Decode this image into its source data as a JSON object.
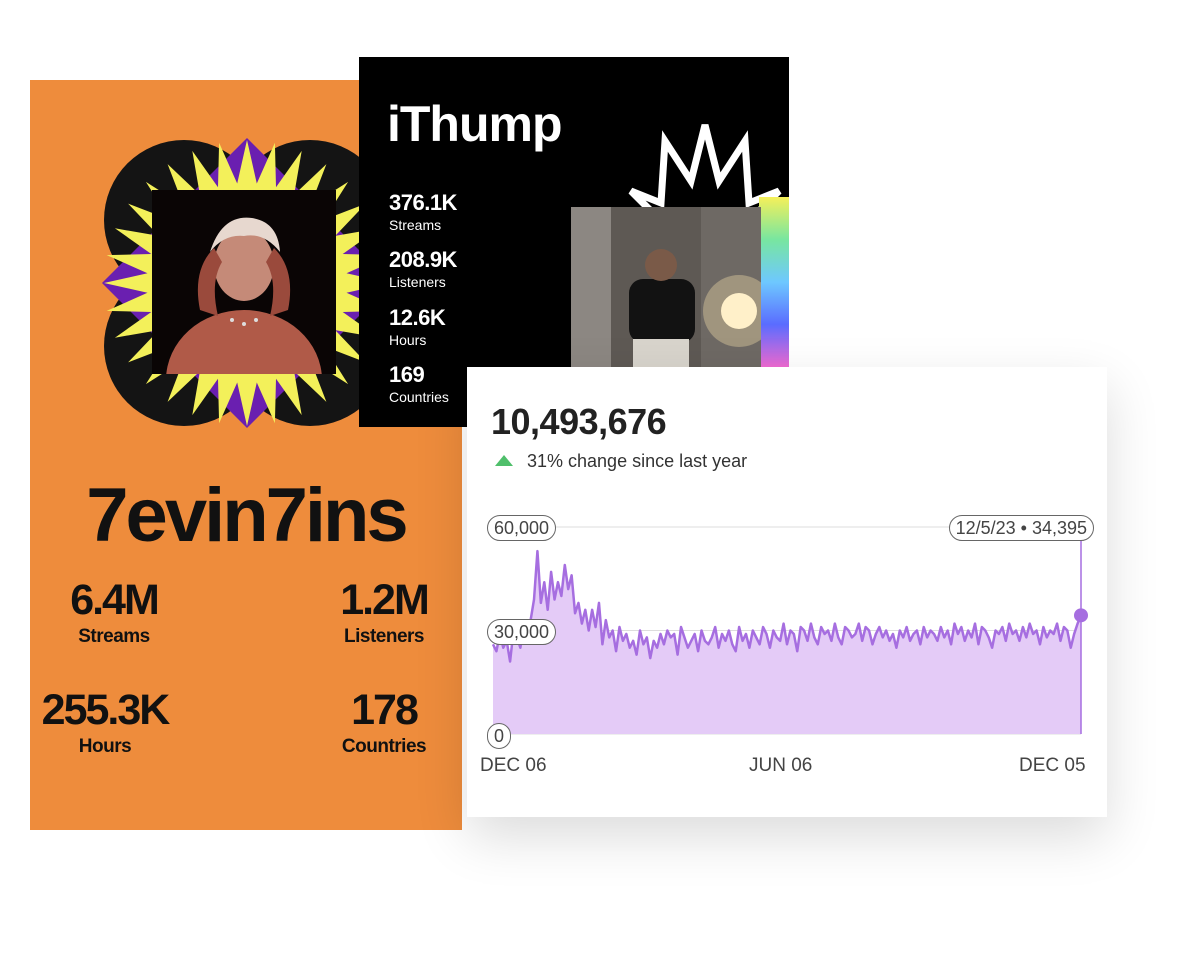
{
  "artist_card_1": {
    "name": "7evin7ins",
    "stats": [
      {
        "value": "6.4M",
        "label": "Streams"
      },
      {
        "value": "1.2M",
        "label": "Listeners"
      },
      {
        "value": "255.3K",
        "label": "Hours"
      },
      {
        "value": "178",
        "label": "Countries"
      }
    ],
    "colors": {
      "background": "#ee8c3c",
      "burst": "#f3f05a",
      "diamond": "#6a1fb0"
    }
  },
  "artist_card_2": {
    "name": "iThump",
    "stats": [
      {
        "value": "376.1K",
        "label": "Streams"
      },
      {
        "value": "208.9K",
        "label": "Listeners"
      },
      {
        "value": "12.6K",
        "label": "Hours"
      },
      {
        "value": "169",
        "label": "Countries"
      }
    ],
    "colors": {
      "background": "#000000"
    }
  },
  "streams_chart": {
    "total": "10,493,676",
    "change_text": "31% change since last year",
    "change_icon": "triangle-up-icon",
    "tooltip": "12/5/23 • 34,395",
    "y_ticks": [
      "60,000",
      "30,000",
      "0"
    ],
    "x_ticks": [
      "DEC 06",
      "JUN 06",
      "DEC 05"
    ],
    "colors": {
      "line": "#a66ee0",
      "fill": "#e4cbf7",
      "up": "#4fbf6b"
    }
  },
  "chart_data": {
    "type": "area",
    "x_range": [
      "2022-12-06",
      "2023-12-05"
    ],
    "ylim": [
      0,
      60000
    ],
    "series": [
      {
        "values": [
          26000,
          24000,
          29000,
          25000,
          27000,
          21000,
          30000,
          28000,
          25000,
          31000,
          30000,
          33000,
          39000,
          53000,
          38000,
          44000,
          36000,
          47000,
          39000,
          44000,
          40000,
          49000,
          42000,
          46000,
          35000,
          38000,
          32000,
          36000,
          30000,
          36000,
          31000,
          38000,
          26000,
          33000,
          28000,
          30000,
          24000,
          31000,
          27000,
          29000,
          25000,
          27000,
          23000,
          30000,
          26000,
          28000,
          22000,
          27000,
          25000,
          29000,
          26000,
          30000,
          28000,
          29000,
          23000,
          31000,
          28000,
          25000,
          27000,
          29000,
          24000,
          30000,
          27000,
          26000,
          28000,
          31000,
          25000,
          29000,
          27000,
          30000,
          26000,
          24000,
          31000,
          27000,
          29000,
          25000,
          30000,
          28000,
          26000,
          31000,
          29000,
          25000,
          30000,
          28000,
          27000,
          32000,
          26000,
          30000,
          29000,
          24000,
          31000,
          30000,
          27000,
          32000,
          28000,
          26000,
          31000,
          29000,
          30000,
          27000,
          32000,
          28000,
          26000,
          31000,
          30000,
          28000,
          29000,
          32000,
          27000,
          31000,
          30000,
          26000,
          29000,
          31000,
          28000,
          30000,
          27000,
          29000,
          25000,
          30000,
          28000,
          31000,
          27000,
          29000,
          30000,
          26000,
          31000,
          28000,
          30000,
          29000,
          27000,
          31000,
          28000,
          30000,
          26000,
          32000,
          29000,
          31000,
          27000,
          30000,
          28000,
          32000,
          26000,
          31000,
          30000,
          28000,
          25000,
          30000,
          29000,
          31000,
          27000,
          32000,
          29000,
          30000,
          27000,
          31000,
          28000,
          32000,
          29000,
          30000,
          26000,
          31000,
          28000,
          30000,
          29000,
          32000,
          27000,
          31000,
          30000,
          25000,
          29000,
          32000,
          34395
        ]
      }
    ]
  }
}
